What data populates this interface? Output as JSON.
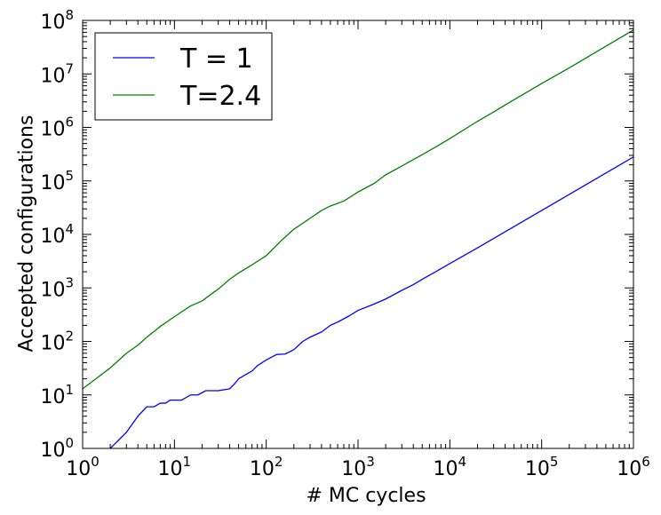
{
  "chart_data": {
    "type": "line",
    "xscale": "log",
    "yscale": "log",
    "xlabel": "# MC cycles",
    "ylabel": "Accepted configurations",
    "xlim": [
      1,
      1000000
    ],
    "ylim": [
      1,
      100000000
    ],
    "xticks": [
      {
        "base": "10",
        "exp": "0",
        "value": 1
      },
      {
        "base": "10",
        "exp": "1",
        "value": 10
      },
      {
        "base": "10",
        "exp": "2",
        "value": 100
      },
      {
        "base": "10",
        "exp": "3",
        "value": 1000
      },
      {
        "base": "10",
        "exp": "4",
        "value": 10000
      },
      {
        "base": "10",
        "exp": "5",
        "value": 100000
      },
      {
        "base": "10",
        "exp": "6",
        "value": 1000000
      }
    ],
    "yticks": [
      {
        "base": "10",
        "exp": "0",
        "value": 1
      },
      {
        "base": "10",
        "exp": "1",
        "value": 10
      },
      {
        "base": "10",
        "exp": "2",
        "value": 100
      },
      {
        "base": "10",
        "exp": "3",
        "value": 1000
      },
      {
        "base": "10",
        "exp": "4",
        "value": 10000
      },
      {
        "base": "10",
        "exp": "5",
        "value": 100000
      },
      {
        "base": "10",
        "exp": "6",
        "value": 1000000
      },
      {
        "base": "10",
        "exp": "7",
        "value": 10000000
      },
      {
        "base": "10",
        "exp": "8",
        "value": 100000000
      }
    ],
    "legend_position": "top-left",
    "grid": false,
    "series": [
      {
        "name": "T = 1",
        "color": "#0000ff",
        "points": [
          [
            2,
            1
          ],
          [
            3,
            2
          ],
          [
            4,
            4
          ],
          [
            5,
            6
          ],
          [
            6,
            6
          ],
          [
            7,
            7
          ],
          [
            8,
            7
          ],
          [
            9,
            8
          ],
          [
            12,
            8
          ],
          [
            15,
            10
          ],
          [
            18,
            10
          ],
          [
            20,
            11
          ],
          [
            22,
            12
          ],
          [
            30,
            12
          ],
          [
            40,
            13
          ],
          [
            45,
            16
          ],
          [
            50,
            20
          ],
          [
            60,
            24
          ],
          [
            70,
            28
          ],
          [
            80,
            35
          ],
          [
            90,
            40
          ],
          [
            100,
            45
          ],
          [
            130,
            57
          ],
          [
            160,
            58
          ],
          [
            200,
            70
          ],
          [
            250,
            100
          ],
          [
            300,
            120
          ],
          [
            400,
            150
          ],
          [
            500,
            200
          ],
          [
            600,
            230
          ],
          [
            800,
            300
          ],
          [
            1000,
            380
          ],
          [
            1500,
            500
          ],
          [
            2000,
            620
          ],
          [
            3000,
            900
          ],
          [
            4000,
            1150
          ],
          [
            5000,
            1450
          ],
          [
            7000,
            2000
          ],
          [
            10000,
            2850
          ],
          [
            20000,
            5600
          ],
          [
            30000,
            8400
          ],
          [
            50000,
            14000
          ],
          [
            100000,
            28000
          ],
          [
            200000,
            56000
          ],
          [
            300000,
            84000
          ],
          [
            500000,
            140000
          ],
          [
            1000000,
            280000
          ]
        ]
      },
      {
        "name": "T=2.4",
        "color": "#008000",
        "points": [
          [
            1,
            13
          ],
          [
            1.5,
            22
          ],
          [
            2,
            32
          ],
          [
            3,
            60
          ],
          [
            4,
            85
          ],
          [
            5,
            120
          ],
          [
            7,
            190
          ],
          [
            10,
            290
          ],
          [
            15,
            460
          ],
          [
            20,
            570
          ],
          [
            25,
            760
          ],
          [
            30,
            950
          ],
          [
            40,
            1450
          ],
          [
            50,
            1900
          ],
          [
            70,
            2700
          ],
          [
            100,
            4000
          ],
          [
            150,
            8000
          ],
          [
            200,
            12500
          ],
          [
            300,
            20000
          ],
          [
            400,
            28000
          ],
          [
            500,
            34000
          ],
          [
            700,
            42000
          ],
          [
            1000,
            62000
          ],
          [
            1500,
            90000
          ],
          [
            2000,
            130000
          ],
          [
            3000,
            190000
          ],
          [
            5000,
            310000
          ],
          [
            7000,
            430000
          ],
          [
            10000,
            620000
          ],
          [
            20000,
            1300000
          ],
          [
            30000,
            1950000
          ],
          [
            50000,
            3300000
          ],
          [
            100000,
            6600000
          ],
          [
            200000,
            13000000
          ],
          [
            500000,
            33000000
          ],
          [
            1000000,
            66000000
          ]
        ]
      }
    ]
  }
}
